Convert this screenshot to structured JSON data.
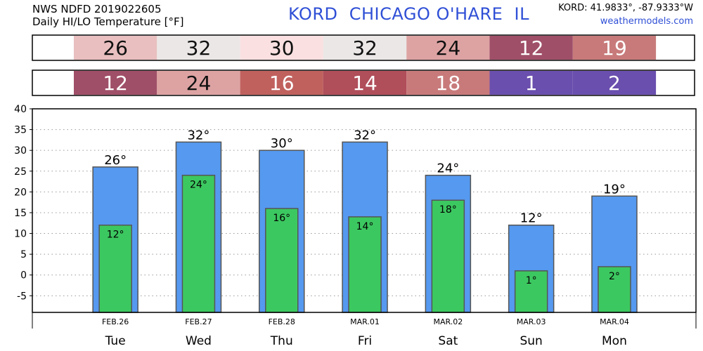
{
  "header": {
    "product": "NWS NDFD 2019022605",
    "subtitle": "Daily HI/LO Temperature [°F]",
    "station": "KORD  CHICAGO O'HARE  IL",
    "coords": "KORD: 41.9833°, -87.9333°W",
    "site": "weathermodels.com"
  },
  "hi_row": {
    "values": [
      "26",
      "32",
      "30",
      "32",
      "24",
      "12",
      "19"
    ],
    "colors": [
      "#e9bfbf",
      "#ebe7e7",
      "#fae0e0",
      "#ebe7e7",
      "#dda3a3",
      "#a04f68",
      "#c87a7a"
    ]
  },
  "lo_row": {
    "values": [
      "12",
      "24",
      "16",
      "14",
      "18",
      "1",
      "2"
    ],
    "colors": [
      "#a04f68",
      "#dda3a3",
      "#c0615e",
      "#b04e5a",
      "#c87a7a",
      "#6a4fae",
      "#6a4fae"
    ]
  },
  "chart_data": {
    "type": "bar",
    "categories": [
      "Tue",
      "Wed",
      "Thu",
      "Fri",
      "Sat",
      "Sun",
      "Mon"
    ],
    "dates": [
      "FEB.26",
      "FEB.27",
      "FEB.28",
      "MAR.01",
      "MAR.02",
      "MAR.03",
      "MAR.04"
    ],
    "series": [
      {
        "values": [
          26,
          32,
          30,
          32,
          24,
          12,
          19
        ],
        "color": "#5599f0",
        "labels": [
          "26°",
          "32°",
          "30°",
          "32°",
          "24°",
          "12°",
          "19°"
        ]
      },
      {
        "values": [
          12,
          24,
          16,
          14,
          18,
          1,
          2
        ],
        "color": "#3cc860",
        "labels": [
          "12°",
          "24°",
          "16°",
          "14°",
          "18°",
          "1°",
          "2°"
        ]
      }
    ],
    "ylim": [
      -9,
      40
    ],
    "yticks": [
      "40",
      "35",
      "30",
      "25",
      "20",
      "15",
      "10",
      "5",
      "0",
      "-5"
    ],
    "grid": true
  }
}
